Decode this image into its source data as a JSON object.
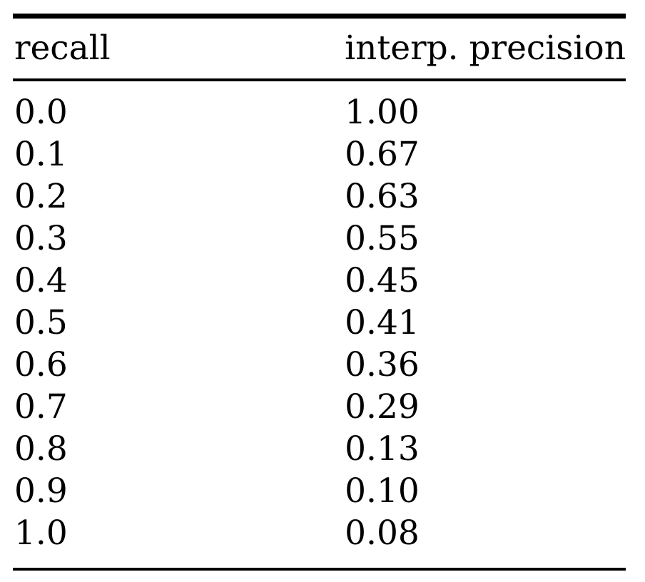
{
  "chart_data": {
    "type": "table",
    "columns": [
      "recall",
      "interp. precision"
    ],
    "rows": [
      [
        "0.0",
        "1.00"
      ],
      [
        "0.1",
        "0.67"
      ],
      [
        "0.2",
        "0.63"
      ],
      [
        "0.3",
        "0.55"
      ],
      [
        "0.4",
        "0.45"
      ],
      [
        "0.5",
        "0.41"
      ],
      [
        "0.6",
        "0.36"
      ],
      [
        "0.7",
        "0.29"
      ],
      [
        "0.8",
        "0.13"
      ],
      [
        "0.9",
        "0.10"
      ],
      [
        "1.0",
        "0.08"
      ]
    ],
    "recall_values": [
      0.0,
      0.1,
      0.2,
      0.3,
      0.4,
      0.5,
      0.6,
      0.7,
      0.8,
      0.9,
      1.0
    ],
    "interpolated_precision_values": [
      1.0,
      0.67,
      0.63,
      0.55,
      0.45,
      0.41,
      0.36,
      0.29,
      0.13,
      0.1,
      0.08
    ],
    "colors": {
      "text": "#000000",
      "rule": "#000000",
      "background": "#ffffff"
    }
  }
}
